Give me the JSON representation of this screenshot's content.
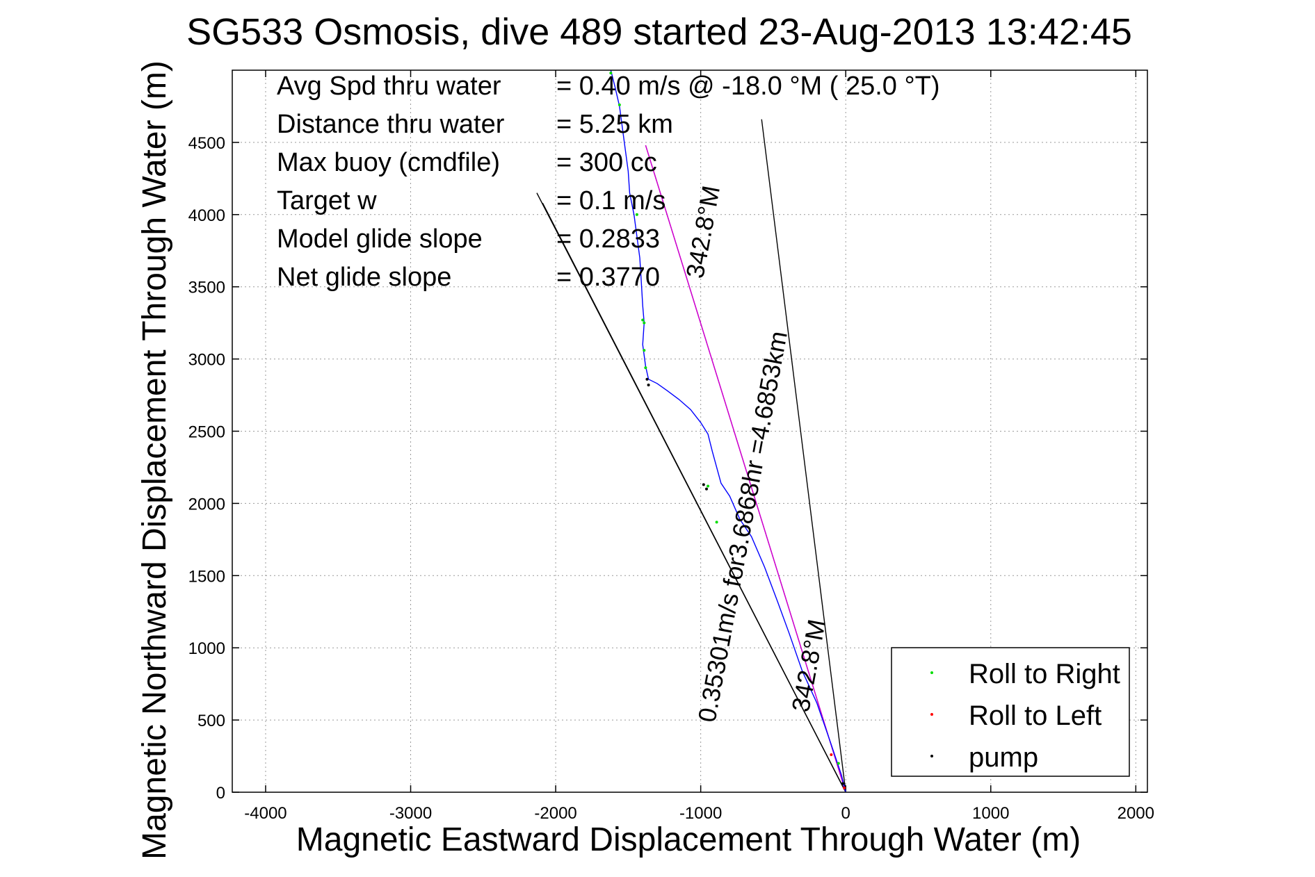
{
  "chart_data": {
    "type": "line",
    "title": "SG533 Osmosis, dive 489 started 23-Aug-2013 13:42:45",
    "xlabel": "Magnetic Eastward Displacement Through Water (m)",
    "ylabel": "Magnetic Northward Displacement Through Water (m)",
    "xlim": [
      -4230,
      2080
    ],
    "ylim": [
      0,
      5000
    ],
    "xticks": [
      -4000,
      -3000,
      -2000,
      -1000,
      0,
      1000,
      2000
    ],
    "xtick_labels": [
      "-4000",
      "-3000",
      "-2000",
      "-1000",
      "0",
      "1000",
      "2000"
    ],
    "yticks": [
      0,
      500,
      1000,
      1500,
      2000,
      2500,
      3000,
      3500,
      4000,
      4500
    ],
    "ytick_labels": [
      "0",
      "500",
      "1000",
      "1500",
      "2000",
      "2500",
      "3000",
      "3500",
      "4000",
      "4500"
    ],
    "grid": true,
    "legend_position": "bottom-right",
    "info_lines": [
      {
        "label": "Avg Spd thru water",
        "value": "=  0.40 m/s @ -18.0 °M ( 25.0 °T)"
      },
      {
        "label": "Distance thru water",
        "value": "=  5.25 km"
      },
      {
        "label": "Max buoy (cmdfile)",
        "value": "= 300 cc"
      },
      {
        "label": "Target w",
        "value": "= 0.1 m/s"
      },
      {
        "label": "Model glide slope",
        "value": "= 0.2833"
      },
      {
        "label": "Net glide slope",
        "value": "= 0.3770"
      }
    ],
    "annotations": [
      {
        "text": "0.35301m/s for3.6868hr =4.6853km"
      },
      {
        "text": "342.8°M"
      },
      {
        "text": "342.8°M"
      }
    ],
    "series": [
      {
        "name": "Roll to Right",
        "color": "#00dd00",
        "marker": "dot"
      },
      {
        "name": "Roll to Left",
        "color": "#ff0000",
        "marker": "dot"
      },
      {
        "name": "pump",
        "color": "#000000",
        "marker": "dot"
      }
    ],
    "track": {
      "color": "#0000ff",
      "x": [
        0,
        -30,
        -100,
        -200,
        -300,
        -390,
        -470,
        -560,
        -650,
        -730,
        -800,
        -860,
        -920,
        -950,
        -1000,
        -1070,
        -1150,
        -1230,
        -1300,
        -1360,
        -1380,
        -1400,
        -1390,
        -1400,
        -1410,
        -1420,
        -1440,
        -1460,
        -1490,
        -1500,
        -1520,
        -1540,
        -1560,
        -1590,
        -1620
      ],
      "y": [
        0,
        120,
        330,
        620,
        840,
        1100,
        1320,
        1560,
        1770,
        1890,
        2050,
        2140,
        2360,
        2480,
        2560,
        2650,
        2720,
        2780,
        2830,
        2860,
        2950,
        3100,
        3250,
        3370,
        3540,
        3700,
        3850,
        4000,
        4150,
        4300,
        4450,
        4600,
        4750,
        4880,
        5000
      ]
    },
    "roll_right_points": {
      "x": [
        -1620,
        -1560,
        -1440,
        -1400,
        -1390,
        -1390,
        -1380,
        -890,
        -950,
        -50
      ],
      "y": [
        4980,
        4760,
        4000,
        3270,
        3250,
        3060,
        2940,
        1870,
        2120,
        200
      ]
    },
    "roll_left_points": {
      "x": [
        -100,
        -10
      ],
      "y": [
        260,
        30
      ]
    },
    "pump_points": {
      "x": [
        -1360,
        -1370,
        -980,
        -960,
        -20
      ],
      "y": [
        2820,
        2860,
        2130,
        2100,
        60
      ]
    },
    "lines": [
      {
        "color": "#000000",
        "x": [
          0,
          -2130
        ],
        "y": [
          0,
          4150
        ]
      },
      {
        "color": "#000000",
        "x": [
          0,
          -580
        ],
        "y": [
          0,
          4660
        ]
      },
      {
        "color": "#000000",
        "x": [
          0,
          -2090
        ],
        "y": [
          0,
          4080
        ]
      },
      {
        "color": "#cc00cc",
        "x": [
          0,
          -1380
        ],
        "y": [
          0,
          4480
        ]
      },
      {
        "color": "#cc00cc",
        "x": [
          0,
          -1380
        ],
        "y": [
          0,
          4480
        ]
      }
    ]
  }
}
